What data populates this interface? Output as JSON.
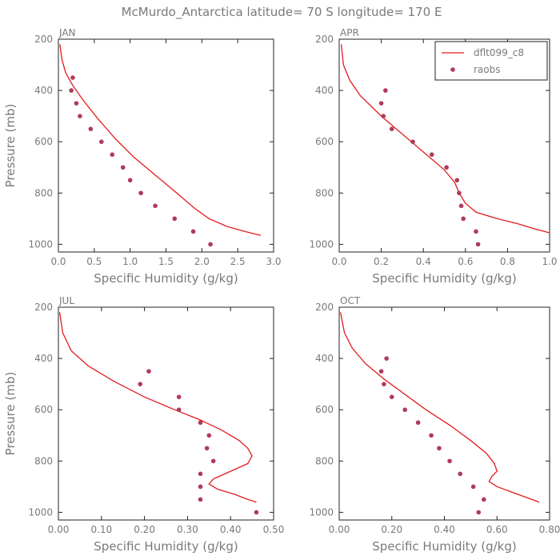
{
  "figure": {
    "title": "McMurdo_Antarctica  latitude= 70 S longitude= 170 E",
    "colors": {
      "model": "#e31b1b",
      "obs": "#b03a5a",
      "text": "#7a7a7a",
      "axis": "#222222"
    }
  },
  "chart_data": [
    {
      "type": "line",
      "panel_label": "JAN",
      "xlabel": "Specific Humidity (g/kg)",
      "ylabel": "Pressure (mb)",
      "xlim": [
        0.0,
        3.0
      ],
      "ylim": [
        200,
        1030
      ],
      "y_inverted": true,
      "xticks": [
        "0.0",
        "0.5",
        "1.0",
        "1.5",
        "2.0",
        "2.5",
        "3.0"
      ],
      "xtick_values": [
        0.0,
        0.5,
        1.0,
        1.5,
        2.0,
        2.5,
        3.0
      ],
      "yticks": [
        "200",
        "400",
        "600",
        "800",
        "1000"
      ],
      "ytick_values": [
        200,
        400,
        600,
        800,
        1000
      ],
      "series": [
        {
          "name": "dflt099_c8",
          "kind": "line",
          "x": [
            0.02,
            0.05,
            0.1,
            0.2,
            0.35,
            0.55,
            0.8,
            1.05,
            1.35,
            1.65,
            1.9,
            2.1,
            2.35,
            2.6,
            2.82
          ],
          "y": [
            220,
            280,
            330,
            380,
            440,
            510,
            590,
            660,
            730,
            800,
            860,
            900,
            930,
            950,
            965
          ]
        },
        {
          "name": "raobs",
          "kind": "scatter",
          "x": [
            0.2,
            0.18,
            0.25,
            0.3,
            0.45,
            0.6,
            0.75,
            0.9,
            1.0,
            1.15,
            1.35,
            1.62,
            1.88,
            2.12
          ],
          "y": [
            350,
            400,
            450,
            500,
            550,
            600,
            650,
            700,
            750,
            800,
            850,
            900,
            950,
            1000
          ]
        }
      ]
    },
    {
      "type": "line",
      "panel_label": "APR",
      "xlabel": "Specific Humidity (g/kg)",
      "ylabel": "",
      "xlim": [
        0.0,
        1.0
      ],
      "ylim": [
        200,
        1030
      ],
      "y_inverted": true,
      "xticks": [
        "0.0",
        "0.2",
        "0.4",
        "0.6",
        "0.8",
        "1.0"
      ],
      "xtick_values": [
        0.0,
        0.2,
        0.4,
        0.6,
        0.8,
        1.0
      ],
      "yticks": [
        "200",
        "400",
        "600",
        "800",
        "1000"
      ],
      "ytick_values": [
        200,
        400,
        600,
        800,
        1000
      ],
      "legend": {
        "placement": "top-right",
        "entries": [
          "dflt099_c8",
          "raobs"
        ]
      },
      "series": [
        {
          "name": "dflt099_c8",
          "kind": "line",
          "x": [
            0.01,
            0.02,
            0.05,
            0.1,
            0.2,
            0.3,
            0.4,
            0.5,
            0.55,
            0.57,
            0.6,
            0.65,
            0.75,
            0.85,
            0.93,
            1.0
          ],
          "y": [
            220,
            300,
            360,
            420,
            500,
            570,
            640,
            710,
            760,
            800,
            840,
            875,
            900,
            920,
            940,
            955
          ]
        },
        {
          "name": "raobs",
          "kind": "scatter",
          "x": [
            0.22,
            0.2,
            0.21,
            0.25,
            0.35,
            0.44,
            0.51,
            0.56,
            0.57,
            0.58,
            0.59,
            0.65,
            0.66
          ],
          "y": [
            400,
            450,
            500,
            550,
            600,
            650,
            700,
            750,
            800,
            850,
            900,
            950,
            1000
          ]
        }
      ]
    },
    {
      "type": "line",
      "panel_label": "JUL",
      "xlabel": "Specific Humidity (g/kg)",
      "ylabel": "Pressure (mb)",
      "xlim": [
        0.0,
        0.5
      ],
      "ylim": [
        200,
        1030
      ],
      "y_inverted": true,
      "xticks": [
        "0.00",
        "0.10",
        "0.20",
        "0.30",
        "0.40",
        "0.50"
      ],
      "xtick_values": [
        0.0,
        0.1,
        0.2,
        0.3,
        0.4,
        0.5
      ],
      "yticks": [
        "200",
        "400",
        "600",
        "800",
        "1000"
      ],
      "ytick_values": [
        200,
        400,
        600,
        800,
        1000
      ],
      "series": [
        {
          "name": "dflt099_c8",
          "kind": "line",
          "x": [
            0.003,
            0.01,
            0.03,
            0.07,
            0.13,
            0.2,
            0.27,
            0.33,
            0.38,
            0.42,
            0.44,
            0.45,
            0.44,
            0.4,
            0.36,
            0.35,
            0.37,
            0.41,
            0.44,
            0.46
          ],
          "y": [
            220,
            300,
            370,
            430,
            490,
            550,
            600,
            640,
            680,
            720,
            750,
            780,
            810,
            840,
            870,
            890,
            910,
            930,
            950,
            960
          ]
        },
        {
          "name": "raobs",
          "kind": "scatter",
          "x": [
            0.21,
            0.19,
            0.28,
            0.28,
            0.33,
            0.35,
            0.345,
            0.36,
            0.33,
            0.33,
            0.33,
            0.46
          ],
          "y": [
            450,
            500,
            550,
            600,
            650,
            700,
            750,
            800,
            850,
            900,
            950,
            1000
          ]
        }
      ]
    },
    {
      "type": "line",
      "panel_label": "OCT",
      "xlabel": "Specific Humidity (g/kg)",
      "ylabel": "",
      "xlim": [
        0.0,
        0.8
      ],
      "ylim": [
        200,
        1030
      ],
      "y_inverted": true,
      "xticks": [
        "0.00",
        "0.20",
        "0.40",
        "0.60",
        "0.80"
      ],
      "xtick_values": [
        0.0,
        0.2,
        0.4,
        0.6,
        0.8
      ],
      "yticks": [
        "200",
        "400",
        "600",
        "800",
        "1000"
      ],
      "ytick_values": [
        200,
        400,
        600,
        800,
        1000
      ],
      "series": [
        {
          "name": "dflt099_c8",
          "kind": "line",
          "x": [
            0.005,
            0.02,
            0.05,
            0.1,
            0.17,
            0.25,
            0.33,
            0.42,
            0.5,
            0.56,
            0.59,
            0.6,
            0.58,
            0.57,
            0.6,
            0.68,
            0.76
          ],
          "y": [
            220,
            300,
            360,
            420,
            480,
            540,
            600,
            660,
            720,
            770,
            810,
            840,
            860,
            880,
            900,
            930,
            960
          ]
        },
        {
          "name": "raobs",
          "kind": "scatter",
          "x": [
            0.18,
            0.16,
            0.17,
            0.2,
            0.25,
            0.3,
            0.35,
            0.38,
            0.42,
            0.46,
            0.51,
            0.55,
            0.53
          ],
          "y": [
            400,
            450,
            500,
            550,
            600,
            650,
            700,
            750,
            800,
            850,
            900,
            950,
            1000
          ]
        }
      ]
    }
  ]
}
